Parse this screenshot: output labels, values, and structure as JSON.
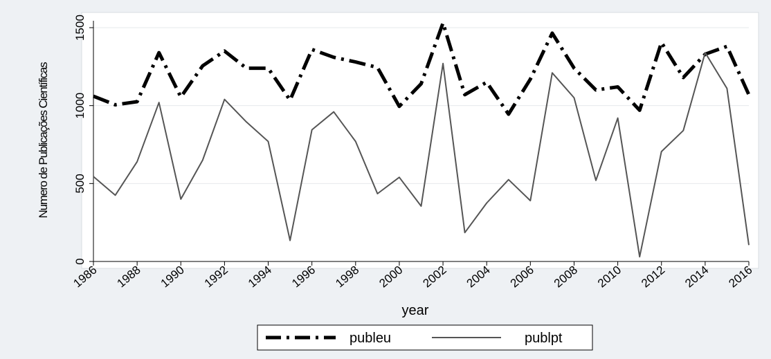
{
  "chart_data": {
    "type": "line",
    "xlabel": "year",
    "ylabel": "Numero de Publicações Científicas",
    "xlim": [
      1986,
      2016
    ],
    "ylim": [
      0,
      1500
    ],
    "xticks": [
      1986,
      1988,
      1990,
      1992,
      1994,
      1996,
      1998,
      2000,
      2002,
      2004,
      2006,
      2008,
      2010,
      2012,
      2014,
      2016
    ],
    "yticks": [
      0,
      500,
      1000,
      1500
    ],
    "grid": true,
    "legend_position": "bottom",
    "x": [
      1986,
      1987,
      1988,
      1989,
      1990,
      1991,
      1992,
      1993,
      1994,
      1995,
      1996,
      1997,
      1998,
      1999,
      2000,
      2001,
      2002,
      2003,
      2004,
      2005,
      2006,
      2007,
      2008,
      2009,
      2010,
      2011,
      2012,
      2013,
      2014,
      2015,
      2016
    ],
    "series": [
      {
        "name": "publeu",
        "line_style": "dash-dot",
        "color": "#000000",
        "values": [
          1060,
          1005,
          1025,
          1340,
          1055,
          1255,
          1350,
          1240,
          1240,
          1035,
          1360,
          1310,
          1280,
          1245,
          995,
          1140,
          1530,
          1070,
          1150,
          945,
          1170,
          1465,
          1240,
          1100,
          1120,
          970,
          1405,
          1180,
          1330,
          1380,
          1070
        ]
      },
      {
        "name": "publpt",
        "line_style": "solid",
        "color": "#555555",
        "values": [
          545,
          425,
          640,
          1020,
          400,
          650,
          1040,
          895,
          770,
          135,
          845,
          960,
          770,
          435,
          540,
          355,
          1270,
          185,
          375,
          525,
          390,
          1210,
          1050,
          520,
          920,
          30,
          705,
          840,
          1340,
          1110,
          105
        ]
      }
    ]
  }
}
